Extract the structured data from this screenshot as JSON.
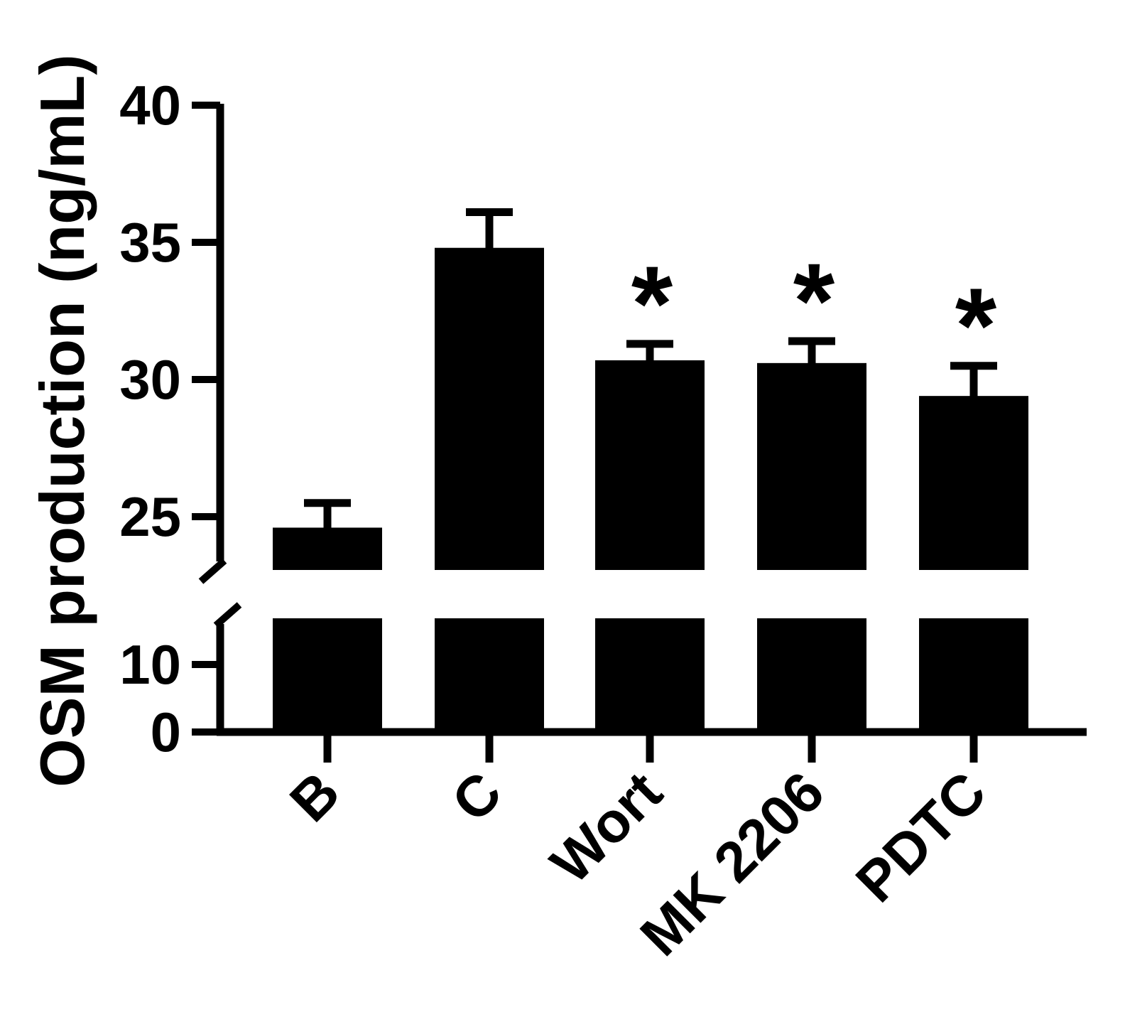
{
  "chart_data": {
    "type": "bar",
    "ylabel": "OSM production (ng/mL)",
    "categories": [
      "B",
      "C",
      "Wort",
      "MK 2206",
      "PDTC"
    ],
    "values": [
      24.6,
      34.8,
      30.7,
      30.6,
      29.4
    ],
    "errors": [
      0.9,
      1.3,
      0.6,
      0.8,
      1.1
    ],
    "significance": [
      "",
      "",
      "*",
      "*",
      "*"
    ],
    "y_ticks": [
      0,
      10,
      25,
      30,
      35,
      40
    ],
    "y_axis_segments": [
      {
        "range": [
          0,
          14
        ],
        "ticks": [
          0,
          10
        ]
      },
      {
        "range": [
          23,
          40
        ],
        "ticks": [
          25,
          30,
          35,
          40
        ]
      }
    ],
    "axis_break": true,
    "grid": false,
    "legend": "none",
    "bar_color": "#000000"
  }
}
